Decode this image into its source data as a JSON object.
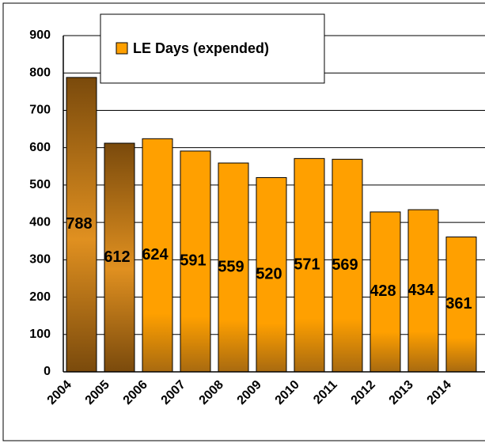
{
  "chart_data": {
    "type": "bar",
    "categories": [
      "2004",
      "2005",
      "2006",
      "2007",
      "2008",
      "2009",
      "2010",
      "2011",
      "2012",
      "2013",
      "2014"
    ],
    "series": [
      {
        "name": "LE Days (expended)",
        "color": "#ffa000",
        "values": [
          788,
          612,
          624,
          591,
          559,
          520,
          571,
          569,
          428,
          434,
          361
        ],
        "bar_colors": [
          "#7a4a0c",
          "#7a4a0c",
          "#ffa000",
          "#ffa000",
          "#ffa000",
          "#ffa000",
          "#ffa000",
          "#ffa000",
          "#ffa000",
          "#ffa000",
          "#ffa000"
        ]
      }
    ],
    "ylim": [
      0,
      900
    ],
    "yticks": [
      0,
      100,
      200,
      300,
      400,
      500,
      600,
      700,
      800,
      900
    ],
    "grid": true,
    "legend": "top"
  }
}
